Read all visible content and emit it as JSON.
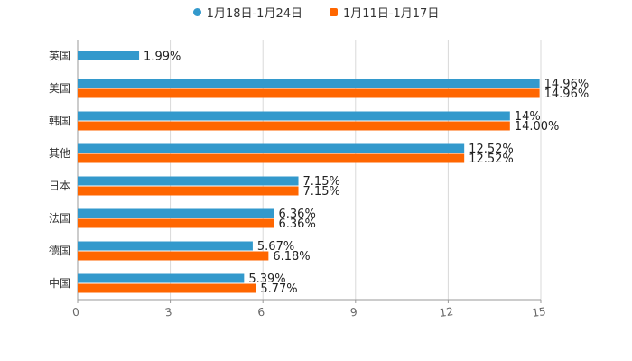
{
  "chart_data": {
    "type": "bar",
    "orientation": "horizontal",
    "categories": [
      "英国",
      "美国",
      "韩国",
      "其他",
      "日本",
      "法国",
      "德国",
      "中国"
    ],
    "series": [
      {
        "name": "1月18日-1月24日",
        "color": "#3399cc",
        "marker": "circle",
        "values": [
          1.99,
          14.96,
          14,
          12.52,
          7.15,
          6.36,
          5.67,
          5.39
        ],
        "labels": [
          "1.99%",
          "14.96%",
          "14%",
          "12.52%",
          "7.15%",
          "6.36%",
          "5.67%",
          "5.39%"
        ]
      },
      {
        "name": "1月11日-1月17日",
        "color": "#ff6600",
        "marker": "square",
        "values": [
          null,
          14.96,
          14.0,
          12.52,
          7.15,
          6.36,
          6.18,
          5.77
        ],
        "labels": [
          null,
          "14.96%",
          "14.00%",
          "12.52%",
          "7.15%",
          "6.36%",
          "6.18%",
          "5.77%"
        ]
      }
    ],
    "x_ticks": [
      0,
      3,
      6,
      9,
      12,
      15
    ],
    "xlim": [
      0,
      15
    ],
    "grid": true,
    "legend_position": "top-center",
    "title": "",
    "xlabel": "",
    "ylabel": ""
  }
}
